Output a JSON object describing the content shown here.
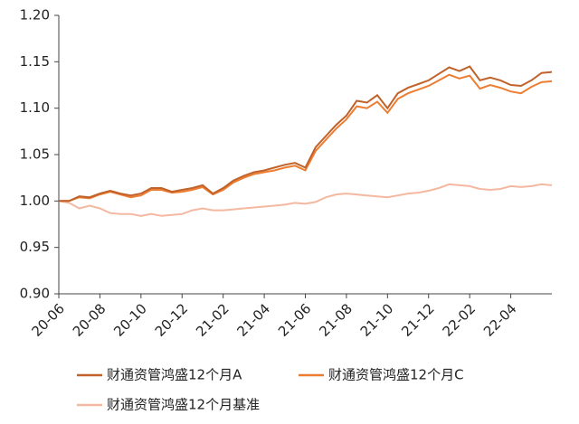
{
  "chart_data": {
    "type": "line",
    "categories": [
      "20-06",
      null,
      null,
      null,
      "20-08",
      null,
      null,
      null,
      "20-10",
      null,
      null,
      null,
      "20-12",
      null,
      null,
      null,
      "21-02",
      null,
      null,
      null,
      "21-04",
      null,
      null,
      null,
      "21-06",
      null,
      null,
      null,
      "21-08",
      null,
      null,
      null,
      "21-10",
      null,
      null,
      null,
      "21-12",
      null,
      null,
      null,
      "22-02",
      null,
      null,
      null,
      "22-04",
      null,
      null,
      null,
      null
    ],
    "series": [
      {
        "name": "财通资管鸿盛12个月A",
        "color": "#c0622a",
        "values": [
          1.0,
          1.0,
          1.005,
          1.004,
          1.008,
          1.011,
          1.008,
          1.006,
          1.008,
          1.014,
          1.014,
          1.01,
          1.012,
          1.014,
          1.017,
          1.008,
          1.014,
          1.022,
          1.027,
          1.031,
          1.033,
          1.036,
          1.039,
          1.041,
          1.036,
          1.058,
          1.07,
          1.082,
          1.092,
          1.108,
          1.106,
          1.114,
          1.1,
          1.116,
          1.122,
          1.126,
          1.13,
          1.137,
          1.144,
          1.14,
          1.145,
          1.13,
          1.133,
          1.13,
          1.125,
          1.124,
          1.13,
          1.138,
          1.139
        ]
      },
      {
        "name": "财通资管鸿盛12个月C",
        "color": "#ed7d31",
        "values": [
          1.0,
          1.0,
          1.004,
          1.003,
          1.007,
          1.01,
          1.007,
          1.004,
          1.006,
          1.012,
          1.012,
          1.009,
          1.01,
          1.012,
          1.015,
          1.007,
          1.012,
          1.02,
          1.025,
          1.029,
          1.031,
          1.033,
          1.036,
          1.038,
          1.033,
          1.054,
          1.066,
          1.078,
          1.088,
          1.102,
          1.1,
          1.107,
          1.095,
          1.11,
          1.116,
          1.12,
          1.124,
          1.13,
          1.136,
          1.132,
          1.135,
          1.121,
          1.125,
          1.122,
          1.118,
          1.116,
          1.123,
          1.128,
          1.129
        ]
      },
      {
        "name": "财通资管鸿盛12个月基准",
        "color": "#f4b8a0",
        "values": [
          1.0,
          0.998,
          0.992,
          0.995,
          0.992,
          0.987,
          0.986,
          0.986,
          0.984,
          0.986,
          0.984,
          0.985,
          0.986,
          0.99,
          0.992,
          0.99,
          0.99,
          0.991,
          0.992,
          0.993,
          0.994,
          0.995,
          0.996,
          0.998,
          0.997,
          0.999,
          1.004,
          1.007,
          1.008,
          1.007,
          1.006,
          1.005,
          1.004,
          1.006,
          1.008,
          1.009,
          1.011,
          1.014,
          1.018,
          1.017,
          1.016,
          1.013,
          1.012,
          1.013,
          1.016,
          1.015,
          1.016,
          1.018,
          1.017
        ]
      }
    ],
    "ylim": [
      0.9,
      1.2
    ],
    "yticks": [
      {
        "value": 0.9,
        "label": "0.90"
      },
      0.95,
      {
        "value": 1.0,
        "label": "1.00"
      },
      1.05,
      {
        "value": 1.1,
        "label": "1.10"
      },
      1.15,
      {
        "value": 1.2,
        "label": "1.20"
      }
    ]
  }
}
